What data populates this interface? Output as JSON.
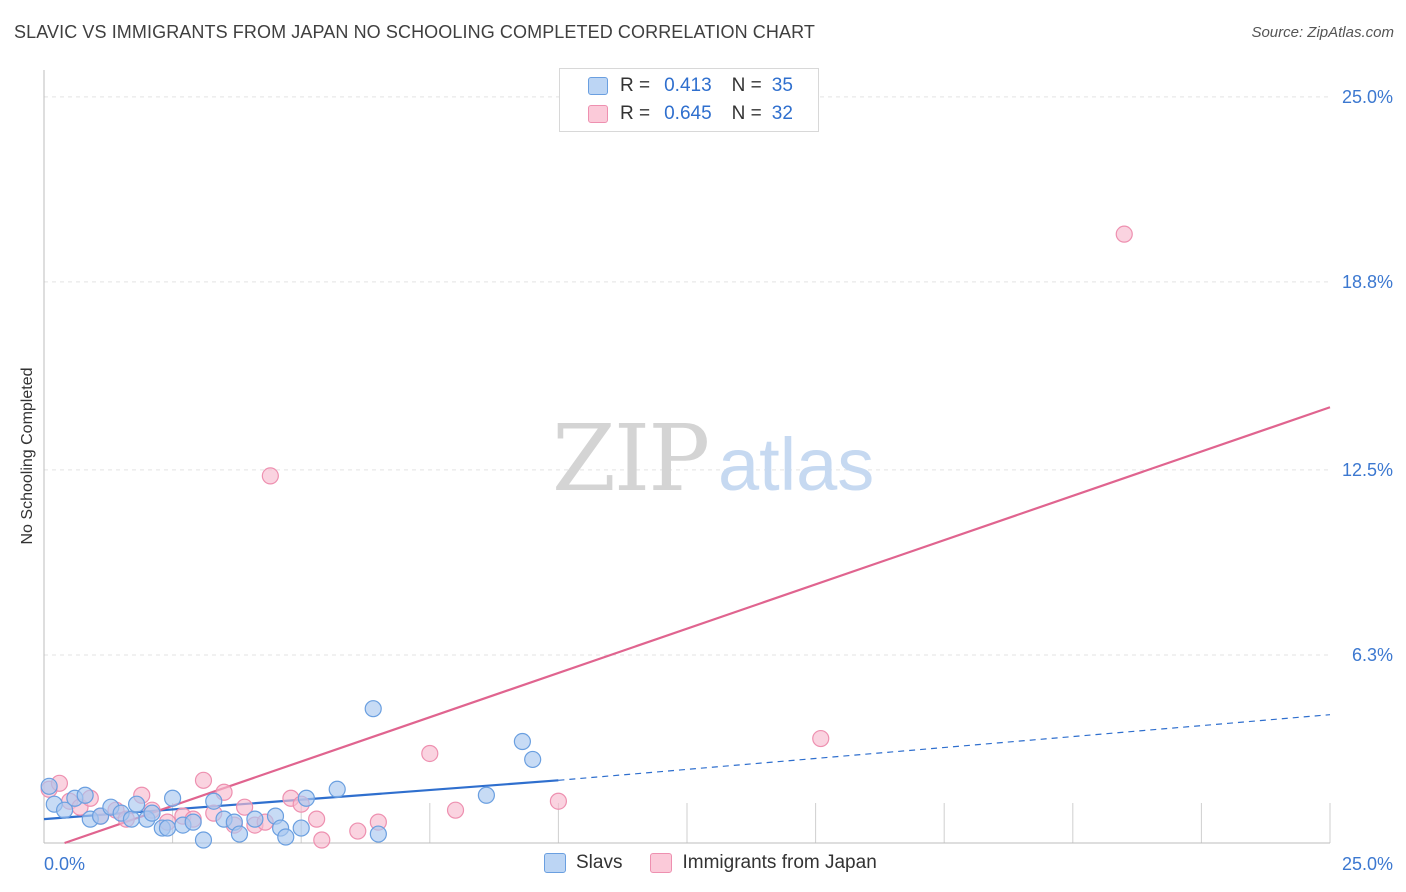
{
  "header": {
    "title": "SLAVIC VS IMMIGRANTS FROM JAPAN NO SCHOOLING COMPLETED CORRELATION CHART",
    "source": "Source: ZipAtlas.com"
  },
  "watermark": {
    "zip": "ZIP",
    "atlas": "atlas"
  },
  "legend": {
    "r_label": "R =",
    "n_label": "N =",
    "rows": [
      {
        "r": "0.413",
        "n": "35",
        "color": "#a9c8f0"
      },
      {
        "r": "0.645",
        "n": "32",
        "color": "#f8bcd0"
      }
    ]
  },
  "colors": {
    "slavs_fill": "#a9c8f0",
    "slavs_stroke": "#6a9fe0",
    "slavs_line": "#2f6fce",
    "japan_fill": "#f8bcd0",
    "japan_stroke": "#ee90b0",
    "japan_line": "#e0648f",
    "tick_text": "#3c78d0",
    "grid": "#e3e3e3"
  },
  "chart_data": {
    "type": "scatter",
    "title": "SLAVIC VS IMMIGRANTS FROM JAPAN NO SCHOOLING COMPLETED CORRELATION CHART",
    "xlabel": "",
    "ylabel": "No Schooling Completed",
    "xlim": [
      0,
      25
    ],
    "ylim": [
      0,
      25.9
    ],
    "x_tick_labels": [
      "0.0%",
      "25.0%"
    ],
    "y_ticks": [
      6.3,
      12.5,
      18.8,
      25.0
    ],
    "y_tick_labels": [
      "6.3%",
      "12.5%",
      "18.8%",
      "25.0%"
    ],
    "series": [
      {
        "name": "Slavs",
        "r": 0.413,
        "n": 35,
        "points": [
          [
            0.1,
            1.9
          ],
          [
            0.2,
            1.3
          ],
          [
            0.4,
            1.1
          ],
          [
            0.6,
            1.5
          ],
          [
            0.8,
            1.6
          ],
          [
            0.9,
            0.8
          ],
          [
            1.1,
            0.9
          ],
          [
            1.3,
            1.2
          ],
          [
            1.5,
            1.0
          ],
          [
            1.7,
            0.8
          ],
          [
            1.8,
            1.3
          ],
          [
            2.0,
            0.8
          ],
          [
            2.1,
            1.0
          ],
          [
            2.3,
            0.5
          ],
          [
            2.4,
            0.5
          ],
          [
            2.5,
            1.5
          ],
          [
            2.7,
            0.6
          ],
          [
            2.9,
            0.7
          ],
          [
            3.1,
            0.1
          ],
          [
            3.3,
            1.4
          ],
          [
            3.5,
            0.8
          ],
          [
            3.7,
            0.7
          ],
          [
            3.8,
            0.3
          ],
          [
            4.1,
            0.8
          ],
          [
            4.5,
            0.9
          ],
          [
            4.6,
            0.5
          ],
          [
            4.7,
            0.2
          ],
          [
            5.0,
            0.5
          ],
          [
            5.1,
            1.5
          ],
          [
            5.7,
            1.8
          ],
          [
            6.5,
            0.3
          ],
          [
            6.4,
            4.5
          ],
          [
            8.6,
            1.6
          ],
          [
            9.3,
            3.4
          ],
          [
            9.5,
            2.8
          ]
        ],
        "trend_solid": [
          [
            0,
            0.8
          ],
          [
            10.0,
            2.1
          ]
        ],
        "trend_dashed": [
          [
            10.0,
            2.1
          ],
          [
            25.0,
            4.3
          ]
        ]
      },
      {
        "name": "Immigrants from Japan",
        "r": 0.645,
        "n": 32,
        "points": [
          [
            0.1,
            1.8
          ],
          [
            0.3,
            2.0
          ],
          [
            0.5,
            1.4
          ],
          [
            0.7,
            1.2
          ],
          [
            0.9,
            1.5
          ],
          [
            1.1,
            0.9
          ],
          [
            1.4,
            1.1
          ],
          [
            1.6,
            0.8
          ],
          [
            1.9,
            1.6
          ],
          [
            2.1,
            1.1
          ],
          [
            2.4,
            0.7
          ],
          [
            2.7,
            0.9
          ],
          [
            2.9,
            0.8
          ],
          [
            3.1,
            2.1
          ],
          [
            3.3,
            1.0
          ],
          [
            3.5,
            1.7
          ],
          [
            3.7,
            0.6
          ],
          [
            3.9,
            1.2
          ],
          [
            4.1,
            0.6
          ],
          [
            4.3,
            0.7
          ],
          [
            4.4,
            12.3
          ],
          [
            4.8,
            1.5
          ],
          [
            5.0,
            1.3
          ],
          [
            5.3,
            0.8
          ],
          [
            5.4,
            0.1
          ],
          [
            6.1,
            0.4
          ],
          [
            6.5,
            0.7
          ],
          [
            7.5,
            3.0
          ],
          [
            8.0,
            1.1
          ],
          [
            10.0,
            1.4
          ],
          [
            15.1,
            3.5
          ],
          [
            21.0,
            20.4
          ]
        ],
        "trend_solid": [
          [
            0.4,
            0.0
          ],
          [
            25.0,
            14.6
          ]
        ]
      }
    ]
  },
  "bottom_legend": {
    "items": [
      {
        "label": "Slavs",
        "color": "#a9c8f0"
      },
      {
        "label": "Immigrants from Japan",
        "color": "#f8bcd0"
      }
    ]
  }
}
